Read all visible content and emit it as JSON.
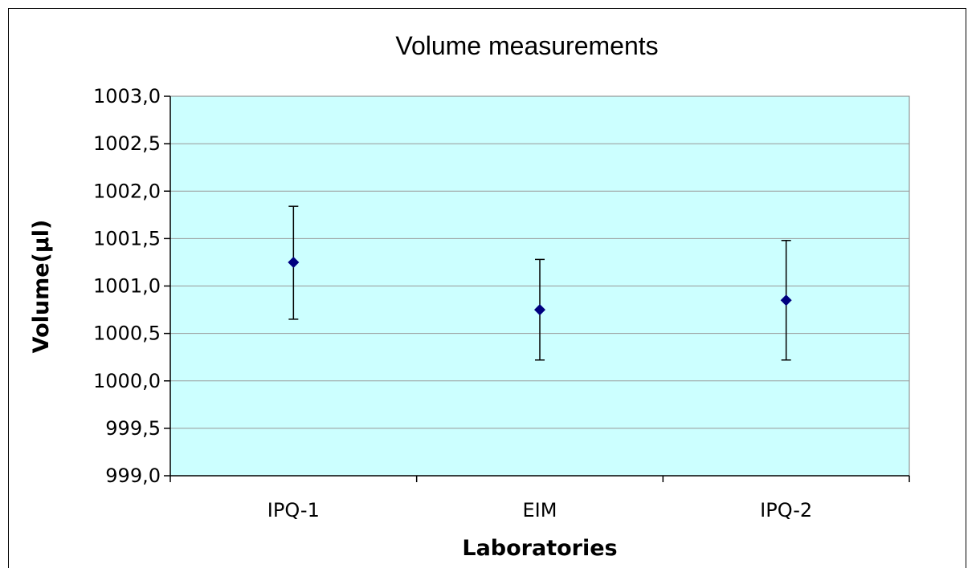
{
  "chart_data": {
    "type": "scatter",
    "title": "Volume measurements",
    "xlabel": "Laboratories",
    "ylabel": "Volume(µl)",
    "categories": [
      "IPQ-1",
      "EIM",
      "IPQ-2"
    ],
    "series": [
      {
        "values": [
          1001.25,
          1000.75,
          1000.85
        ],
        "error_low": [
          1000.65,
          1000.22,
          1000.22
        ],
        "error_high": [
          1001.84,
          1001.28,
          1001.48
        ]
      }
    ],
    "ylim": [
      999.0,
      1003.0
    ],
    "ytick_step": 0.5,
    "ytick_labels": [
      "999,0",
      "999,5",
      "1000,0",
      "1000,5",
      "1001,0",
      "1001,5",
      "1002,0",
      "1002,5",
      "1003,0"
    ],
    "grid": true,
    "legend": "none",
    "colors": {
      "plot_background": "#ccffff",
      "gridline": "#999999",
      "marker": "#000080",
      "error_bar": "#000000"
    }
  }
}
